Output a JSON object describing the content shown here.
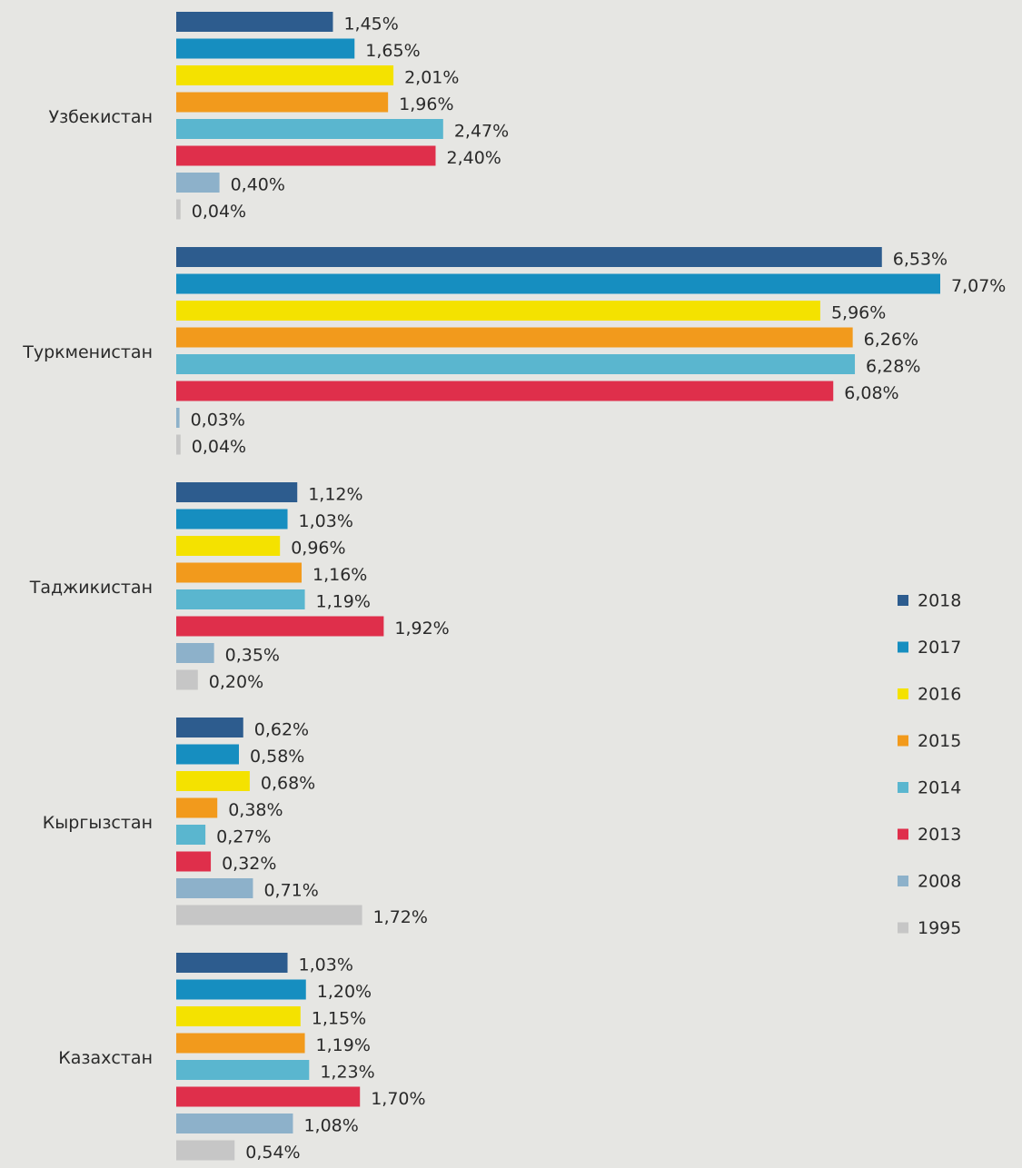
{
  "chart_data": {
    "type": "bar",
    "orientation": "horizontal",
    "legend": "right",
    "categories": [
      "Узбекистан",
      "Туркменистан",
      "Таджикистан",
      "Кыргызстан",
      "Казахстан"
    ],
    "series": [
      {
        "name": "2018",
        "color": "#2d5c8e",
        "values": [
          1.45,
          6.53,
          1.12,
          0.62,
          1.03
        ],
        "value_labels": [
          "1,45%",
          "6,53%",
          "1,12%",
          "0,62%",
          "1,03%"
        ]
      },
      {
        "name": "2017",
        "color": "#168ec0",
        "values": [
          1.65,
          7.07,
          1.03,
          0.58,
          1.2
        ],
        "value_labels": [
          "1,65%",
          "7,07%",
          "1,03%",
          "0,58%",
          "1,20%"
        ]
      },
      {
        "name": "2016",
        "color": "#f4e200",
        "values": [
          2.01,
          5.96,
          0.96,
          0.68,
          1.15
        ],
        "value_labels": [
          "2,01%",
          "5,96%",
          "0,96%",
          "0,68%",
          "1,15%"
        ]
      },
      {
        "name": "2015",
        "color": "#f29a1c",
        "values": [
          1.96,
          6.26,
          1.16,
          0.38,
          1.19
        ],
        "value_labels": [
          "1,96%",
          "6,26%",
          "1,16%",
          "0,38%",
          "1,19%"
        ]
      },
      {
        "name": "2014",
        "color": "#5ab6cf",
        "values": [
          2.47,
          6.28,
          1.19,
          0.27,
          1.23
        ],
        "value_labels": [
          "2,47%",
          "6,28%",
          "1,19%",
          "0,27%",
          "1,23%"
        ]
      },
      {
        "name": "2013",
        "color": "#df2f4b",
        "values": [
          2.4,
          6.08,
          1.92,
          0.32,
          1.7
        ],
        "value_labels": [
          "2,40%",
          "6,08%",
          "1,92%",
          "0,32%",
          "1,70%"
        ]
      },
      {
        "name": "2008",
        "color": "#8db1ca",
        "values": [
          0.4,
          0.03,
          0.35,
          0.71,
          1.08
        ],
        "value_labels": [
          "0,40%",
          "0,03%",
          "0,35%",
          "0,71%",
          "1,08%"
        ]
      },
      {
        "name": "1995",
        "color": "#c6c6c6",
        "values": [
          0.04,
          0.04,
          0.2,
          1.72,
          0.54
        ],
        "value_labels": [
          "0,04%",
          "0,04%",
          "0,20%",
          "1,72%",
          "0,54%"
        ]
      }
    ]
  }
}
